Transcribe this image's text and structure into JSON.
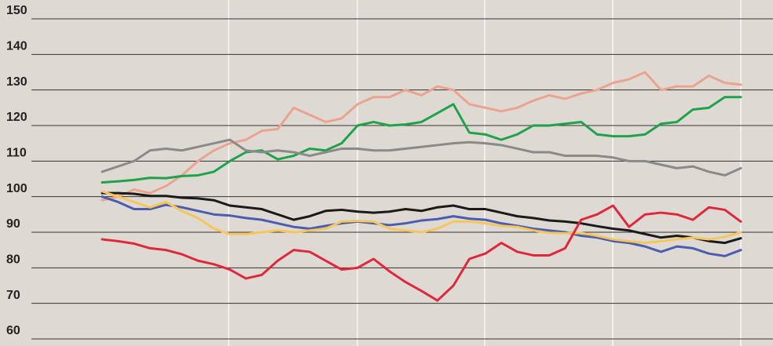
{
  "chart_data": {
    "type": "line",
    "ylim": [
      60,
      150
    ],
    "yticks": [
      60,
      70,
      80,
      90,
      100,
      110,
      120,
      130,
      140,
      150
    ],
    "grid": true,
    "series": [
      {
        "color": "#eba38f",
        "values": [
          99,
          100,
          102,
          101,
          103,
          106,
          110,
          113,
          115,
          116,
          118.5,
          119,
          125,
          123,
          121,
          122,
          126,
          128,
          128,
          130,
          128.5,
          131,
          130,
          126,
          125,
          124,
          125,
          127,
          128.5,
          127.5,
          129,
          130,
          132,
          133,
          135,
          130,
          131,
          131,
          134,
          132,
          131.5
        ]
      },
      {
        "color": "#1fa34a",
        "values": [
          104,
          104.3,
          104.7,
          105.3,
          105.2,
          105.8,
          106,
          107,
          110,
          112.5,
          113,
          110.5,
          111.5,
          113.5,
          113,
          115,
          120,
          121,
          120,
          120.3,
          121,
          123.5,
          126,
          118,
          117.5,
          116,
          117.5,
          120,
          120,
          120.5,
          121,
          117.5,
          117,
          117,
          117.5,
          120.5,
          121,
          124.5,
          125,
          128,
          128
        ]
      },
      {
        "color": "#8a8a8a",
        "values": [
          107,
          108.5,
          110,
          113,
          113.5,
          113,
          114,
          115,
          116,
          113,
          112.5,
          113,
          112.5,
          111.5,
          112.5,
          113.5,
          113.5,
          113,
          113,
          113.5,
          114,
          114.5,
          115,
          115.3,
          115,
          114.5,
          113.5,
          112.5,
          112.5,
          111.5,
          111.5,
          111.5,
          111,
          110,
          110,
          109,
          108,
          108.5,
          107,
          106,
          108
        ]
      },
      {
        "color": "#1a1a1a",
        "values": [
          101,
          101,
          100.8,
          100.2,
          100.2,
          99.7,
          99.5,
          99,
          97.5,
          97,
          96.5,
          95,
          93.5,
          94.5,
          96,
          96.3,
          95.8,
          95.5,
          95.8,
          96.5,
          96,
          97,
          97.5,
          96.5,
          96.5,
          95.5,
          94.5,
          94,
          93.3,
          93,
          92.5,
          91.7,
          91,
          90.5,
          89.5,
          88.5,
          89,
          88.5,
          87.5,
          87,
          88.3
        ]
      },
      {
        "color": "#4a5db0",
        "values": [
          100,
          98.5,
          96.5,
          96.5,
          97.7,
          97,
          96,
          95,
          94.7,
          94,
          93.5,
          92.5,
          91.5,
          91,
          91.8,
          92.5,
          93,
          92.5,
          92,
          92.5,
          93.3,
          93.7,
          94.5,
          93.8,
          93.5,
          92.5,
          91.8,
          91,
          90.5,
          90,
          89,
          88.5,
          87.5,
          87,
          86,
          84.5,
          86,
          85.5,
          84,
          83.3,
          85
        ]
      },
      {
        "color": "#f6c55c",
        "values": [
          101.5,
          100,
          98.5,
          97,
          98.5,
          96,
          94,
          91,
          89.5,
          89.5,
          90,
          90.5,
          90,
          90.5,
          91,
          93,
          93.2,
          93,
          91,
          90.5,
          90,
          91,
          93,
          93,
          92.5,
          91.8,
          91.5,
          90.5,
          89.8,
          89.7,
          89.8,
          89,
          88,
          87.5,
          87,
          87.5,
          88,
          88.5,
          88,
          88.7,
          90
        ]
      },
      {
        "color": "#e0283c",
        "values": [
          88,
          87.5,
          86.8,
          85.5,
          85,
          83.8,
          82,
          81,
          79.5,
          77,
          78,
          82,
          85,
          84.5,
          82,
          79.5,
          80,
          82.5,
          79,
          76,
          73.5,
          70.8,
          75,
          82.5,
          84,
          87,
          84.5,
          83.5,
          83.5,
          85.5,
          93.5,
          95,
          97.5,
          91.5,
          95,
          95.5,
          95,
          93.5,
          97,
          96.3,
          93
        ]
      }
    ]
  }
}
